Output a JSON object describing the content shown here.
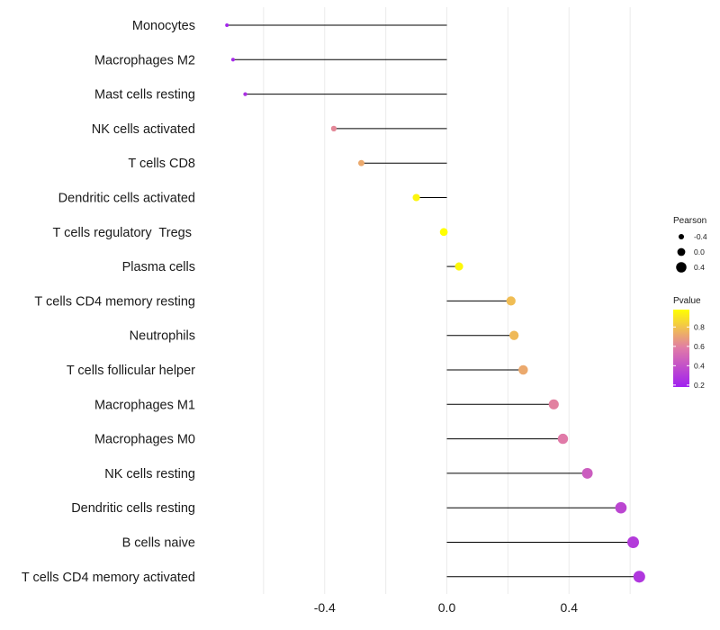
{
  "chart_data": {
    "type": "lollipop",
    "title": "",
    "xlabel": "",
    "ylabel": "",
    "xlim": [
      -0.8,
      0.8
    ],
    "xticks": [
      -0.4,
      0.0,
      0.4
    ],
    "xtick_labels": [
      "-0.4",
      "0.0",
      "0.4"
    ],
    "baseline": 0,
    "grid": true,
    "points": [
      {
        "category": "Monocytes",
        "pearson": -0.72,
        "pvalue": 0.2
      },
      {
        "category": "Macrophages M2",
        "pearson": -0.7,
        "pvalue": 0.22
      },
      {
        "category": "Mast cells resting",
        "pearson": -0.66,
        "pvalue": 0.25
      },
      {
        "category": "NK cells activated",
        "pearson": -0.37,
        "pvalue": 0.62
      },
      {
        "category": "T cells CD8",
        "pearson": -0.28,
        "pvalue": 0.72
      },
      {
        "category": "Dendritic cells activated",
        "pearson": -0.1,
        "pvalue": 0.95
      },
      {
        "category": "T cells regulatory  Tregs ",
        "pearson": -0.01,
        "pvalue": 0.98
      },
      {
        "category": "Plasma cells",
        "pearson": 0.04,
        "pvalue": 0.96
      },
      {
        "category": "T cells CD4 memory resting",
        "pearson": 0.21,
        "pvalue": 0.78
      },
      {
        "category": "Neutrophils",
        "pearson": 0.22,
        "pvalue": 0.77
      },
      {
        "category": "T cells follicular helper",
        "pearson": 0.25,
        "pvalue": 0.72
      },
      {
        "category": "Macrophages M1",
        "pearson": 0.35,
        "pvalue": 0.6
      },
      {
        "category": "Macrophages M0",
        "pearson": 0.38,
        "pvalue": 0.58
      },
      {
        "category": "NK cells resting",
        "pearson": 0.46,
        "pvalue": 0.45
      },
      {
        "category": "Dendritic cells resting",
        "pearson": 0.57,
        "pvalue": 0.35
      },
      {
        "category": "B cells naive",
        "pearson": 0.61,
        "pvalue": 0.3
      },
      {
        "category": "T cells CD4 memory activated",
        "pearson": 0.63,
        "pvalue": 0.28
      }
    ],
    "legend_size": {
      "title": "Pearson",
      "values": [
        -0.4,
        0.0,
        0.4
      ],
      "labels": [
        "-0.4",
        "0.0",
        "0.4"
      ]
    },
    "legend_color": {
      "title": "Pvalue",
      "range": [
        0.18,
        0.98
      ],
      "ticks": [
        0.2,
        0.4,
        0.6,
        0.8
      ],
      "tick_labels": [
        "0.2",
        "0.4",
        "0.6",
        "0.8"
      ],
      "low_color": "#a020f0",
      "mid_color": "#e07aa8",
      "high_color": "#ffff00"
    },
    "colors": {
      "segment": "#000000",
      "grid": "#ebebeb"
    }
  }
}
